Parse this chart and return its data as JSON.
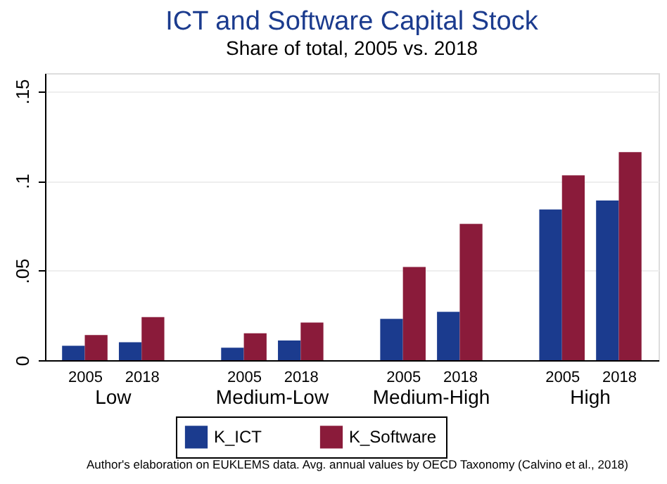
{
  "chart_data": {
    "type": "bar",
    "title": "ICT and Software Capital Stock",
    "subtitle": "Share of total, 2005 vs. 2018",
    "categories": [
      "2005",
      "2018",
      "2005",
      "2018",
      "2005",
      "2018",
      "2005",
      "2018"
    ],
    "series": [
      {
        "name": "K_ICT",
        "color": "#1b3b8e",
        "values": [
          0.008,
          0.01,
          0.007,
          0.011,
          0.023,
          0.027,
          0.084,
          0.089
        ]
      },
      {
        "name": "K_Software",
        "color": "#8a1b3a",
        "values": [
          0.014,
          0.024,
          0.015,
          0.021,
          0.052,
          0.076,
          0.103,
          0.116
        ]
      }
    ],
    "ylim": [
      0,
      0.16
    ],
    "yticks": [
      0,
      {
        "value": 0.05,
        "label": ".05"
      },
      {
        "value": 0.1,
        "label": ".1"
      },
      {
        "value": 0.15,
        "label": ".15"
      }
    ],
    "grid": "y",
    "legend": "bottom",
    "annotations": [
      "Low",
      "Medium-Low",
      "Medium-High",
      "High",
      "Author's elaboration on EUKLEMS data. Avg. annual values by OECD Taxonomy (Calvino et al., 2018)"
    ]
  }
}
